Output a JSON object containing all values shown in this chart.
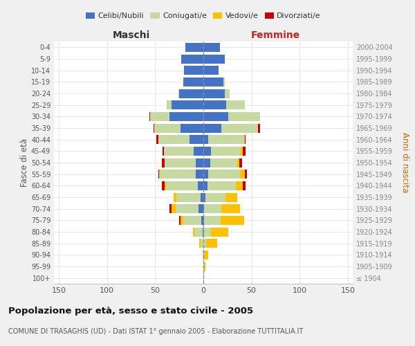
{
  "age_groups": [
    "100+",
    "95-99",
    "90-94",
    "85-89",
    "80-84",
    "75-79",
    "70-74",
    "65-69",
    "60-64",
    "55-59",
    "50-54",
    "45-49",
    "40-44",
    "35-39",
    "30-34",
    "25-29",
    "20-24",
    "15-19",
    "10-14",
    "5-9",
    "0-4"
  ],
  "birth_years": [
    "≤ 1904",
    "1905-1909",
    "1910-1914",
    "1915-1919",
    "1920-1924",
    "1925-1929",
    "1930-1934",
    "1935-1939",
    "1940-1944",
    "1945-1949",
    "1950-1954",
    "1955-1959",
    "1960-1964",
    "1965-1969",
    "1970-1974",
    "1975-1979",
    "1980-1984",
    "1985-1989",
    "1990-1994",
    "1995-1999",
    "2000-2004"
  ],
  "male": {
    "celibe": [
      0,
      0,
      0,
      0,
      1,
      2,
      5,
      3,
      6,
      8,
      8,
      10,
      14,
      24,
      35,
      33,
      25,
      21,
      20,
      23,
      19
    ],
    "coniugato": [
      0,
      0,
      1,
      3,
      8,
      19,
      24,
      25,
      33,
      37,
      32,
      31,
      33,
      27,
      20,
      5,
      1,
      0,
      0,
      0,
      0
    ],
    "vedovo": [
      0,
      0,
      0,
      1,
      2,
      3,
      4,
      3,
      1,
      1,
      0,
      0,
      0,
      0,
      0,
      0,
      0,
      0,
      0,
      0,
      0
    ],
    "divorziato": [
      0,
      0,
      0,
      0,
      0,
      1,
      2,
      0,
      3,
      1,
      3,
      1,
      2,
      1,
      1,
      0,
      0,
      0,
      0,
      0,
      0
    ]
  },
  "female": {
    "nubile": [
      0,
      0,
      0,
      0,
      0,
      1,
      1,
      2,
      4,
      5,
      7,
      8,
      5,
      19,
      26,
      24,
      22,
      21,
      16,
      22,
      17
    ],
    "coniugata": [
      0,
      0,
      1,
      3,
      8,
      17,
      18,
      21,
      30,
      33,
      28,
      31,
      37,
      38,
      33,
      19,
      5,
      1,
      0,
      0,
      0
    ],
    "vedova": [
      1,
      2,
      4,
      11,
      18,
      24,
      19,
      12,
      7,
      5,
      2,
      2,
      1,
      0,
      0,
      0,
      0,
      0,
      0,
      0,
      0
    ],
    "divorziata": [
      0,
      0,
      0,
      0,
      0,
      0,
      0,
      0,
      3,
      2,
      3,
      3,
      1,
      2,
      0,
      0,
      0,
      0,
      0,
      0,
      0
    ]
  },
  "colors": {
    "celibe": "#4472c4",
    "coniugato": "#c5d9a0",
    "vedovo": "#ffc000",
    "divorziato": "#cc0000"
  },
  "xlim": 155,
  "title": "Popolazione per età, sesso e stato civile - 2005",
  "subtitle": "COMUNE DI TRASAGHIS (UD) - Dati ISTAT 1° gennaio 2005 - Elaborazione TUTTITALIA.IT",
  "ylabel_left": "Fasce di età",
  "ylabel_right": "Anni di nascita",
  "xlabel_male": "Maschi",
  "xlabel_female": "Femmine",
  "bg_color": "#f0f0f0",
  "plot_bg": "#ffffff"
}
